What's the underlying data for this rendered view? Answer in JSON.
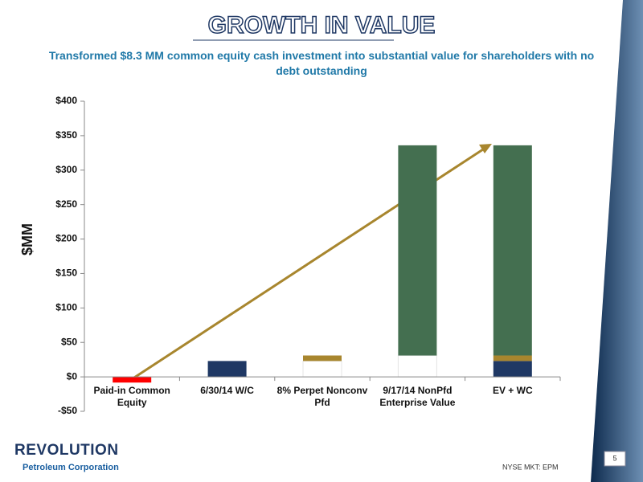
{
  "title": "GROWTH IN VALUE",
  "subtitle": "Transformed $8.3 MM common equity cash investment into substantial value for shareholders with no debt outstanding",
  "chart_data": {
    "type": "waterfall",
    "ylabel": "$MM",
    "categories": [
      "Paid-in Common Equity",
      "6/30/14 W/C",
      "8% Perpet Nonconv Pfd",
      "9/17/14 NonPfd Enterprise Value",
      "EV + WC"
    ],
    "series": [
      {
        "color": "#ff0000",
        "values": [
          -8.3,
          null,
          null,
          null,
          null
        ]
      },
      {
        "color": "#1f3864",
        "values": [
          null,
          23,
          null,
          null,
          23
        ]
      },
      {
        "color": "#a8862e",
        "values": [
          null,
          null,
          8,
          null,
          8
        ]
      },
      {
        "color": "#446f50",
        "values": [
          null,
          null,
          null,
          305,
          305
        ]
      }
    ],
    "ylim": [
      -50,
      400
    ],
    "yticks": [
      {
        "value": -50,
        "label": "-$50"
      },
      {
        "value": 0,
        "label": "$0"
      },
      {
        "value": 50,
        "label": "$50"
      },
      {
        "value": 100,
        "label": "$100"
      },
      {
        "value": 150,
        "label": "$150"
      },
      {
        "value": 200,
        "label": "$200"
      },
      {
        "value": 250,
        "label": "$250"
      },
      {
        "value": 300,
        "label": "$300"
      },
      {
        "value": 350,
        "label": "$350"
      },
      {
        "value": 400,
        "label": "$400"
      }
    ]
  },
  "footer": {
    "logo": "REVOLUTION",
    "company": "Petroleum Corporation",
    "ticker": "NYSE MKT: EPM",
    "page": "5"
  }
}
